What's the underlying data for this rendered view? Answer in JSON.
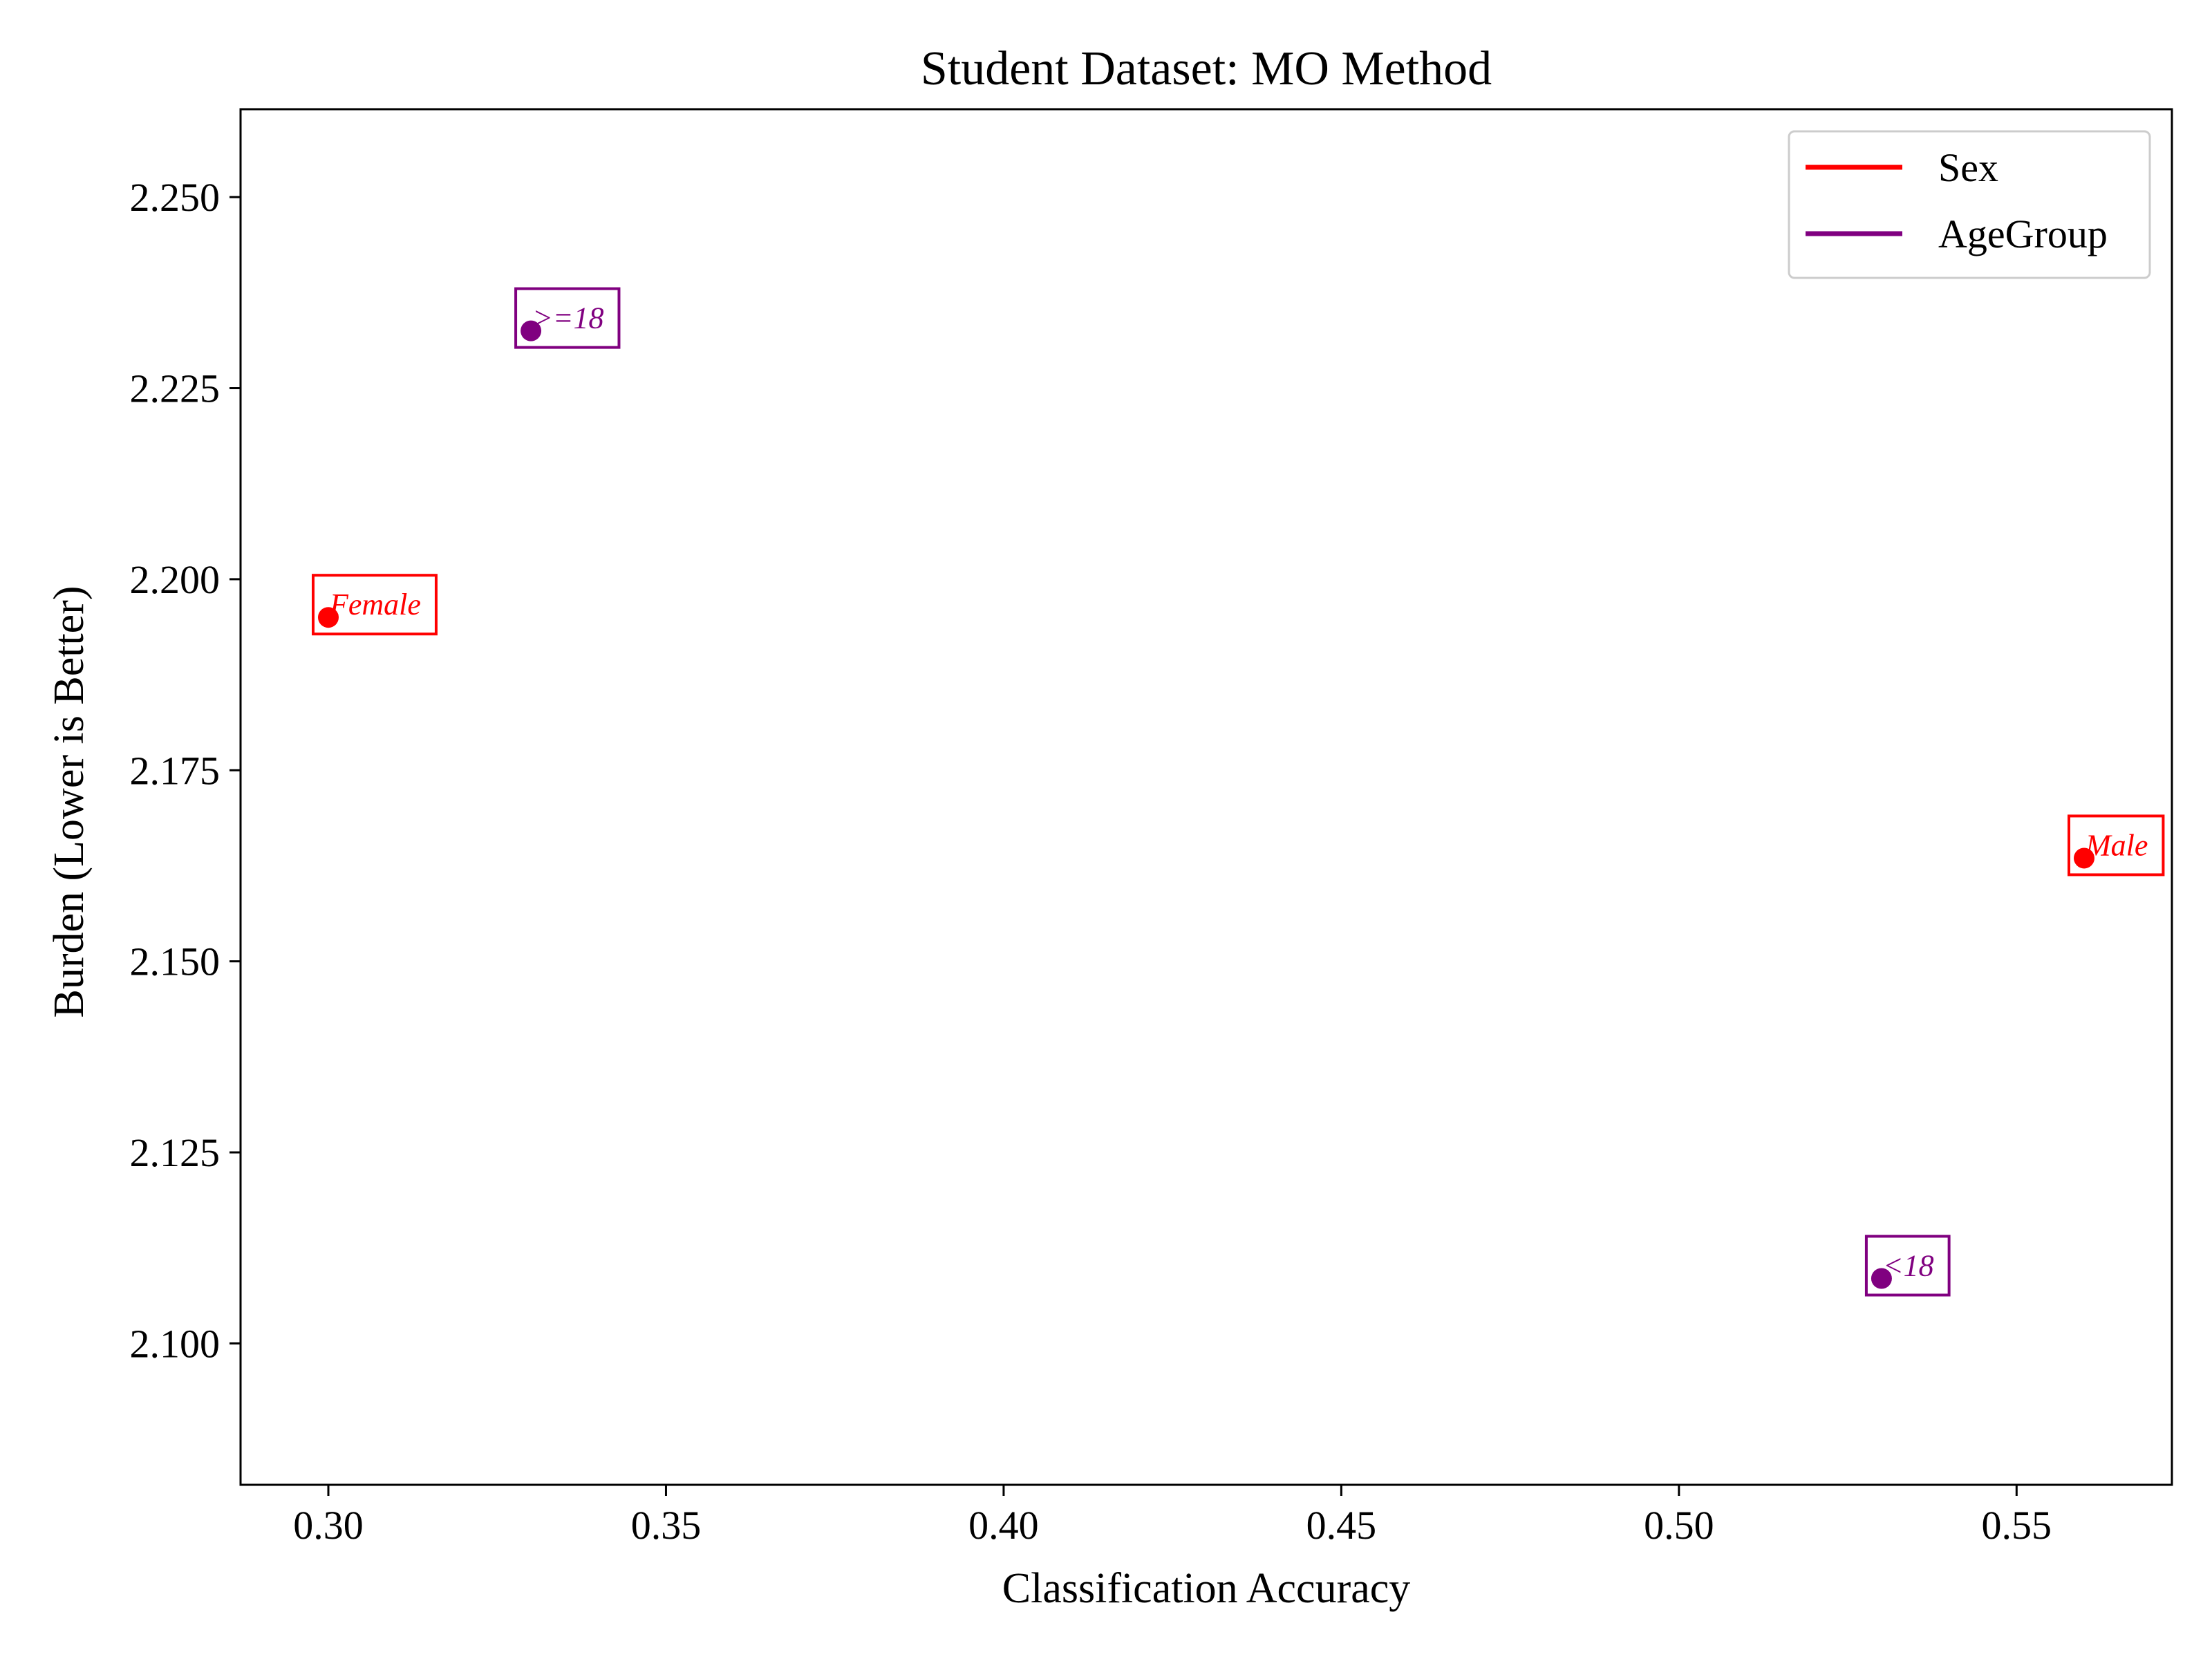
{
  "chart_data": {
    "type": "scatter",
    "title": "Student Dataset: MO Method",
    "xlabel": "Classification Accuracy",
    "ylabel": "Burden (Lower is Better)",
    "xlim": [
      0.287,
      0.573
    ],
    "ylim": [
      2.0815,
      2.2615
    ],
    "xticks": [
      "0.30",
      "0.35",
      "0.40",
      "0.45",
      "0.50",
      "0.55"
    ],
    "yticks": [
      "2.100",
      "2.125",
      "2.150",
      "2.175",
      "2.200",
      "2.225",
      "2.250"
    ],
    "grid": false,
    "legend_position": "top-right",
    "series": [
      {
        "name": "Sex",
        "color": "#ff0000",
        "points": [
          {
            "label": "Female",
            "x": 0.3,
            "y": 2.195
          },
          {
            "label": "Male",
            "x": 0.56,
            "y": 2.1635
          }
        ]
      },
      {
        "name": "AgeGroup",
        "color": "#800080",
        "points": [
          {
            "label": ">=18",
            "x": 0.33,
            "y": 2.2325
          },
          {
            "label": "<18",
            "x": 0.53,
            "y": 2.1085
          }
        ]
      }
    ]
  }
}
